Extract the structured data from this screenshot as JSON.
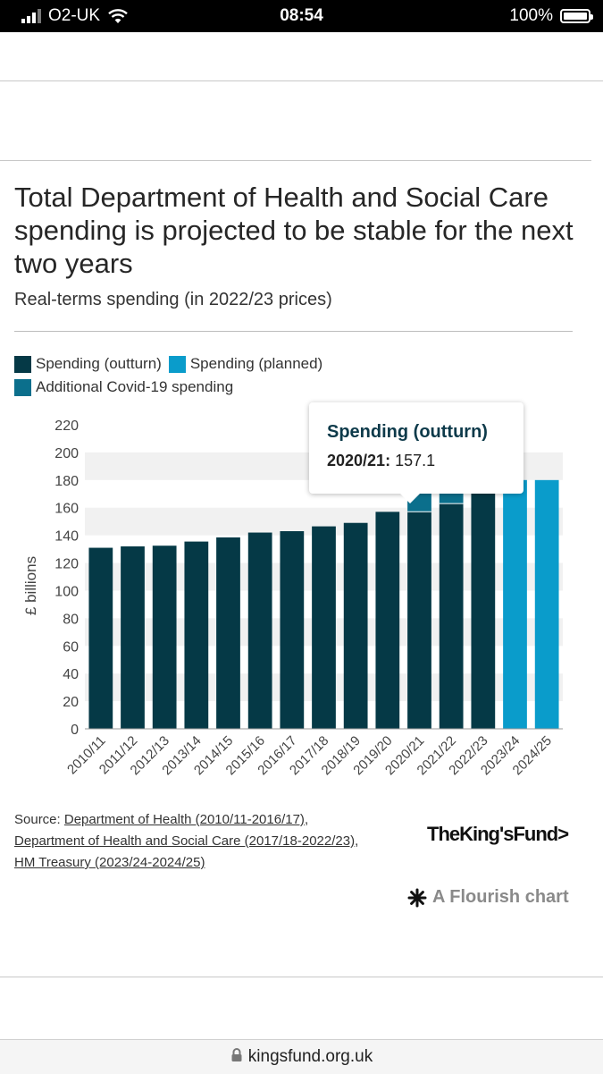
{
  "status_bar": {
    "carrier": "O2-UK",
    "time": "08:54",
    "battery": "100%"
  },
  "chart_data": {
    "type": "bar",
    "title": "Total Department of Health and Social Care spending is projected to be stable for the next two years",
    "subtitle": "Real-terms spending (in 2022/23 prices)",
    "ylabel": "£ billions",
    "xlabel": "",
    "ylim": [
      0,
      220
    ],
    "yticks": [
      0,
      20,
      40,
      60,
      80,
      100,
      120,
      140,
      160,
      180,
      200,
      220
    ],
    "grid": true,
    "legend_position": "top",
    "categories": [
      "2010/11",
      "2011/12",
      "2012/13",
      "2013/14",
      "2014/15",
      "2015/16",
      "2016/17",
      "2017/18",
      "2018/19",
      "2019/20",
      "2020/21",
      "2021/22",
      "2022/23",
      "2023/24",
      "2024/25"
    ],
    "series": [
      {
        "name": "Spending (outturn)",
        "color": "#053946",
        "values": [
          131,
          132,
          132.5,
          135.5,
          138.5,
          142,
          143,
          146.5,
          149,
          157,
          157.1,
          163,
          180,
          null,
          null
        ]
      },
      {
        "name": "Spending (planned)",
        "color": "#0a9ccb",
        "values": [
          null,
          null,
          null,
          null,
          null,
          null,
          null,
          null,
          null,
          null,
          null,
          null,
          null,
          180,
          180
        ]
      },
      {
        "name": "Additional Covid-19 spending",
        "color": "#0b6f8c",
        "values": [
          0,
          0,
          0,
          0,
          0,
          0,
          0,
          0,
          0,
          0,
          40,
          23,
          0,
          0,
          0
        ]
      }
    ],
    "tooltip": {
      "series": "Spending (outturn)",
      "category_label": "2020/21:",
      "value": "157.1"
    }
  },
  "source": {
    "prefix": "Source: ",
    "link1": "Department of Health (2010/11-2016/17)",
    "sep1": ",",
    "link2": "Department of Health and Social Care (2017/18-2022/23)",
    "sep2": ",",
    "link3": "HM Treasury (2023/24-2024/25)"
  },
  "logo_text": "TheKing'sFund>",
  "flourish_label": "A Flourish chart",
  "url": "kingsfund.org.uk"
}
